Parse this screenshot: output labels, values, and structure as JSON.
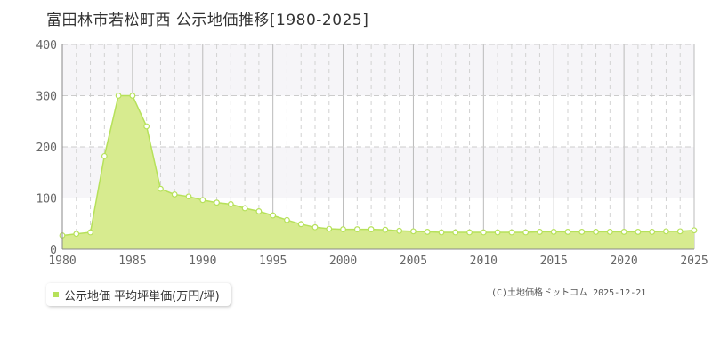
{
  "title": "富田林市若松町西  公示地価推移[1980-2025]",
  "legend": {
    "label": "公示地価 平均坪単価(万円/坪)"
  },
  "credit": "(C)土地価格ドットコム 2025-12-21",
  "colors": {
    "fill": "#d7eb8f",
    "line": "#b6e15a",
    "point_fill": "#ffffff",
    "grid": "#cccccc",
    "band": "#f6f5f8",
    "axis_text": "#666666",
    "legend_swatch": "#b6e15a"
  },
  "chart_data": {
    "type": "area",
    "x": [
      1980,
      1981,
      1982,
      1983,
      1984,
      1985,
      1986,
      1987,
      1988,
      1989,
      1990,
      1991,
      1992,
      1993,
      1994,
      1995,
      1996,
      1997,
      1998,
      1999,
      2000,
      2001,
      2002,
      2003,
      2004,
      2005,
      2006,
      2007,
      2008,
      2009,
      2010,
      2011,
      2012,
      2013,
      2014,
      2015,
      2016,
      2017,
      2018,
      2019,
      2020,
      2021,
      2022,
      2023,
      2024,
      2025
    ],
    "values": [
      null,
      null,
      null,
      null,
      null,
      null,
      null,
      null,
      null,
      null,
      null,
      null,
      null,
      null,
      null,
      null,
      null,
      null,
      null,
      null,
      null,
      null,
      null,
      null,
      null,
      null,
      null,
      null,
      null,
      null,
      null,
      null,
      null,
      null,
      null,
      null,
      null,
      null,
      null,
      null,
      null,
      null,
      null,
      null,
      null,
      null
    ],
    "series": [
      {
        "name": "公示地価 平均坪単価(万円/坪)",
        "values": [
          27,
          30,
          33,
          182,
          300,
          300,
          240,
          118,
          107,
          103,
          96,
          91,
          88,
          80,
          74,
          66,
          57,
          49,
          43,
          40,
          39,
          39,
          39,
          38,
          36,
          35,
          34,
          33,
          33,
          33,
          33,
          33,
          33,
          33,
          34,
          34,
          34,
          34,
          34,
          34,
          34,
          34,
          34,
          35,
          35,
          37
        ],
        "x_start": 1980
      }
    ],
    "x_tick_labels": [
      "1980",
      "1985",
      "1990",
      "1995",
      "2000",
      "2005",
      "2010",
      "2015",
      "2020",
      "2025"
    ],
    "y_tick_labels": [
      "0",
      "100",
      "200",
      "300",
      "400"
    ],
    "xlim": [
      1980,
      2025
    ],
    "ylim": [
      0,
      400
    ],
    "xlabel": "",
    "ylabel": "",
    "grid": true,
    "legend_position": "bottom-left"
  }
}
